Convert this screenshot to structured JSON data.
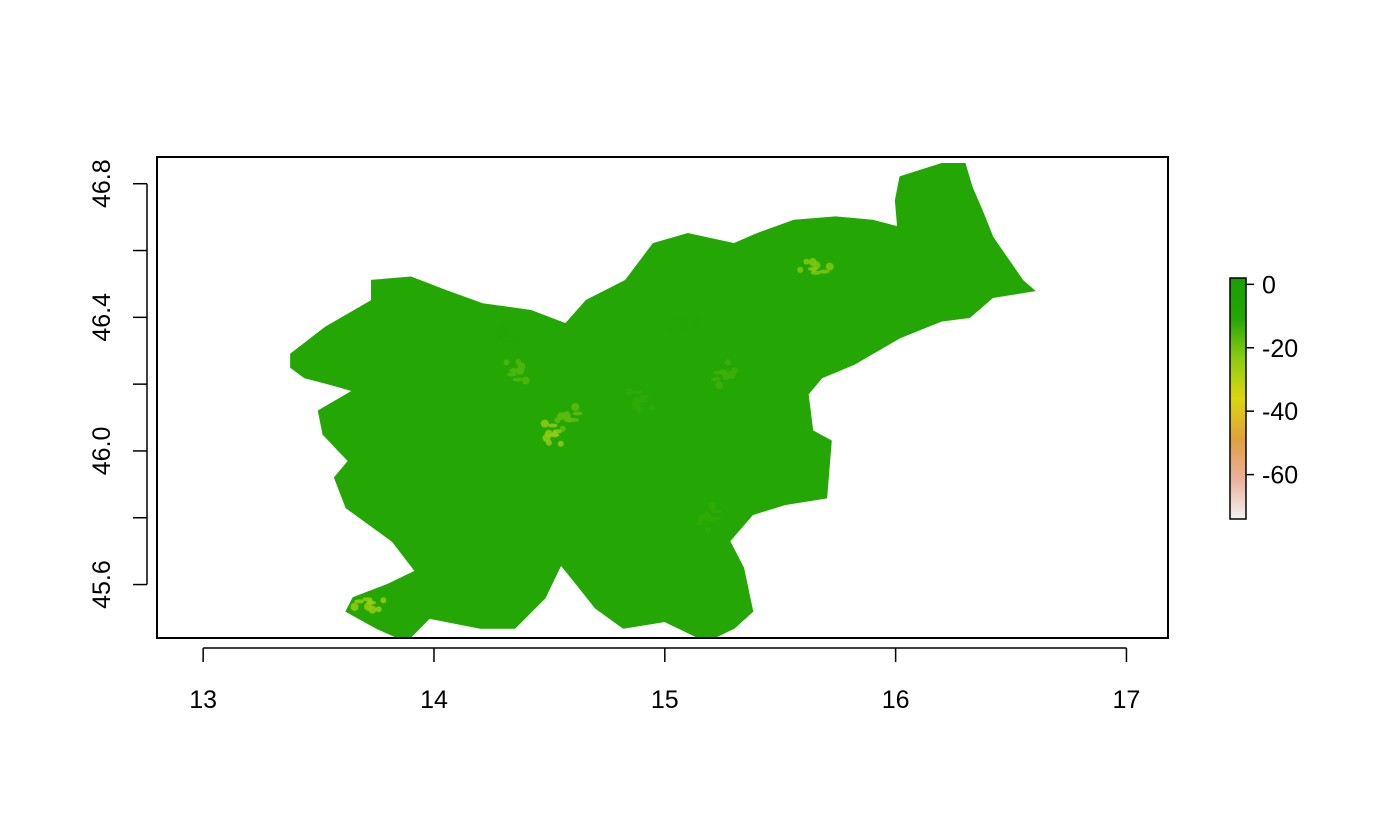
{
  "chart_data": {
    "type": "heatmap",
    "title": "",
    "xlabel": "",
    "ylabel": "",
    "xlim": [
      12.8,
      17.18
    ],
    "ylim": [
      45.44,
      46.88
    ],
    "x_ticks": [
      13,
      14,
      15,
      16,
      17
    ],
    "x_tick_labels": [
      "13",
      "14",
      "15",
      "16",
      "17"
    ],
    "y_ticks": [
      45.6,
      46.0,
      46.4,
      46.8
    ],
    "y_tick_labels": [
      "45.6",
      "46.0",
      "46.4",
      "46.8"
    ],
    "grid": false,
    "region_fill_color": "#24a605",
    "colorbar": {
      "range": [
        -74,
        2
      ],
      "ticks": [
        0,
        -20,
        -40,
        -60
      ],
      "tick_labels": [
        "0",
        "-20",
        "-40",
        "-60"
      ],
      "colors": [
        "#f2f2f2",
        "#ebb09a",
        "#e0a03d",
        "#dcd70a",
        "#8ccc12",
        "#24a605",
        "#18a002"
      ],
      "legend_position": "right"
    },
    "region_outline": [
      [
        13.38,
        46.29
      ],
      [
        13.53,
        46.37
      ],
      [
        13.63,
        46.41
      ],
      [
        13.73,
        46.45
      ],
      [
        13.73,
        46.51
      ],
      [
        13.9,
        46.52
      ],
      [
        14.05,
        46.48
      ],
      [
        14.21,
        46.44
      ],
      [
        14.42,
        46.42
      ],
      [
        14.57,
        46.38
      ],
      [
        14.66,
        46.45
      ],
      [
        14.83,
        46.51
      ],
      [
        14.95,
        46.62
      ],
      [
        15.1,
        46.65
      ],
      [
        15.3,
        46.62
      ],
      [
        15.4,
        46.65
      ],
      [
        15.56,
        46.69
      ],
      [
        15.74,
        46.7
      ],
      [
        15.9,
        46.69
      ],
      [
        16.01,
        46.67
      ],
      [
        16.0,
        46.75
      ],
      [
        16.02,
        46.82
      ],
      [
        16.2,
        46.86
      ],
      [
        16.3,
        46.86
      ],
      [
        16.33,
        46.79
      ],
      [
        16.38,
        46.71
      ],
      [
        16.42,
        46.64
      ],
      [
        16.55,
        46.51
      ],
      [
        16.6,
        46.48
      ],
      [
        16.42,
        46.46
      ],
      [
        16.32,
        46.4
      ],
      [
        16.2,
        46.39
      ],
      [
        16.02,
        46.34
      ],
      [
        15.82,
        46.26
      ],
      [
        15.68,
        46.22
      ],
      [
        15.62,
        46.17
      ],
      [
        15.64,
        46.06
      ],
      [
        15.72,
        46.03
      ],
      [
        15.7,
        45.86
      ],
      [
        15.52,
        45.84
      ],
      [
        15.38,
        45.81
      ],
      [
        15.28,
        45.73
      ],
      [
        15.34,
        45.65
      ],
      [
        15.38,
        45.52
      ],
      [
        15.3,
        45.47
      ],
      [
        15.18,
        45.43
      ],
      [
        15.0,
        45.49
      ],
      [
        14.82,
        45.47
      ],
      [
        14.7,
        45.53
      ],
      [
        14.62,
        45.6
      ],
      [
        14.55,
        45.66
      ],
      [
        14.48,
        45.56
      ],
      [
        14.35,
        45.47
      ],
      [
        14.2,
        45.47
      ],
      [
        13.98,
        45.5
      ],
      [
        13.88,
        45.43
      ],
      [
        13.75,
        45.47
      ],
      [
        13.62,
        45.52
      ],
      [
        13.65,
        45.56
      ],
      [
        13.8,
        45.6
      ],
      [
        13.92,
        45.64
      ],
      [
        13.82,
        45.73
      ],
      [
        13.62,
        45.83
      ],
      [
        13.57,
        45.92
      ],
      [
        13.63,
        45.97
      ],
      [
        13.52,
        46.05
      ],
      [
        13.5,
        46.12
      ],
      [
        13.65,
        46.18
      ],
      [
        13.55,
        46.2
      ],
      [
        13.44,
        46.22
      ],
      [
        13.38,
        46.25
      ],
      [
        13.38,
        46.29
      ]
    ],
    "hotspots": [
      {
        "x": 14.51,
        "y": 46.05,
        "value": -24
      },
      {
        "x": 14.58,
        "y": 46.1,
        "value": -18
      },
      {
        "x": 15.65,
        "y": 46.55,
        "value": -22
      },
      {
        "x": 14.36,
        "y": 46.24,
        "value": -16
      },
      {
        "x": 15.26,
        "y": 46.23,
        "value": -14
      },
      {
        "x": 13.72,
        "y": 45.54,
        "value": -25
      },
      {
        "x": 14.89,
        "y": 46.15,
        "value": -12
      },
      {
        "x": 15.19,
        "y": 45.8,
        "value": -12
      },
      {
        "x": 15.08,
        "y": 46.38,
        "value": -10
      },
      {
        "x": 14.3,
        "y": 46.35,
        "value": -10
      }
    ]
  }
}
